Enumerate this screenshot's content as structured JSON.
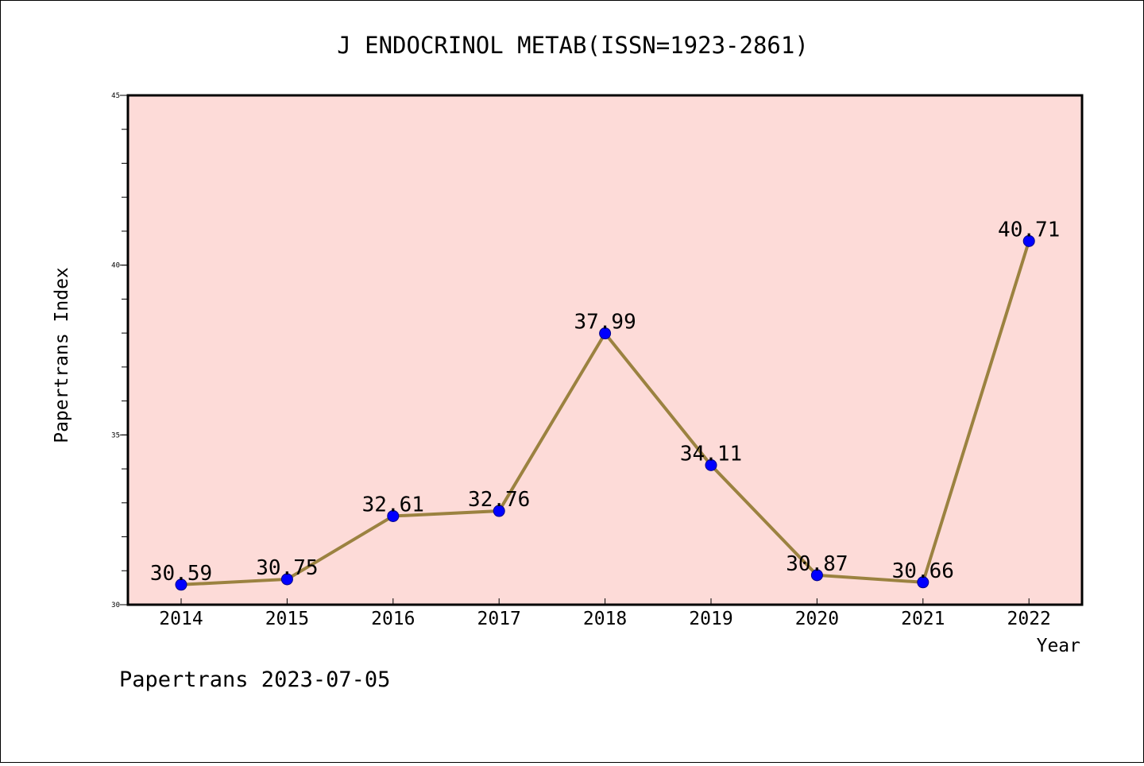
{
  "chart_data": {
    "type": "line",
    "title": "J ENDOCRINOL METAB(ISSN=1923-2861)",
    "xlabel": "Year",
    "ylabel": "Papertrans Index",
    "categories": [
      "2014",
      "2015",
      "2016",
      "2017",
      "2018",
      "2019",
      "2020",
      "2021",
      "2022"
    ],
    "values": [
      30.59,
      30.75,
      32.61,
      32.76,
      37.99,
      34.11,
      30.87,
      30.66,
      40.71
    ],
    "value_labels": [
      "30.59",
      "30.75",
      "32.61",
      "32.76",
      "37.99",
      "34.11",
      "30.87",
      "30.66",
      "40.71"
    ],
    "ylim": [
      30,
      45
    ],
    "yticks": [
      "30",
      "35",
      "40",
      "45"
    ],
    "grid": false,
    "colors": {
      "plot_background": "#fddbd8",
      "line": "#9b8240",
      "marker": "#0000ff"
    }
  },
  "footer": "Papertrans 2023-07-05"
}
